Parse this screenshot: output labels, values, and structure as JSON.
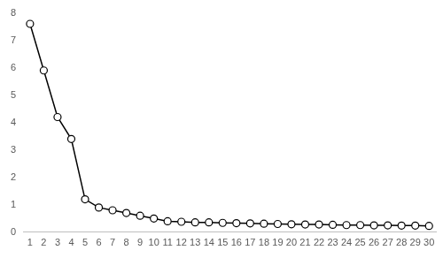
{
  "chart_data": {
    "type": "line",
    "categories": [
      1,
      2,
      3,
      4,
      5,
      6,
      7,
      8,
      9,
      10,
      11,
      12,
      13,
      14,
      15,
      16,
      17,
      18,
      19,
      20,
      21,
      22,
      23,
      24,
      25,
      26,
      27,
      28,
      29,
      30
    ],
    "values": [
      7.6,
      5.9,
      4.2,
      3.4,
      1.2,
      0.9,
      0.8,
      0.7,
      0.6,
      0.5,
      0.4,
      0.38,
      0.36,
      0.36,
      0.34,
      0.33,
      0.32,
      0.31,
      0.3,
      0.29,
      0.28,
      0.28,
      0.27,
      0.26,
      0.26,
      0.25,
      0.25,
      0.24,
      0.24,
      0.23
    ],
    "color": "#000000",
    "marker": "circle",
    "line_style": "solid",
    "ylim": [
      0,
      8
    ],
    "yticks": [
      0,
      1,
      2,
      3,
      4,
      5,
      6,
      7,
      8
    ],
    "grid": false
  }
}
